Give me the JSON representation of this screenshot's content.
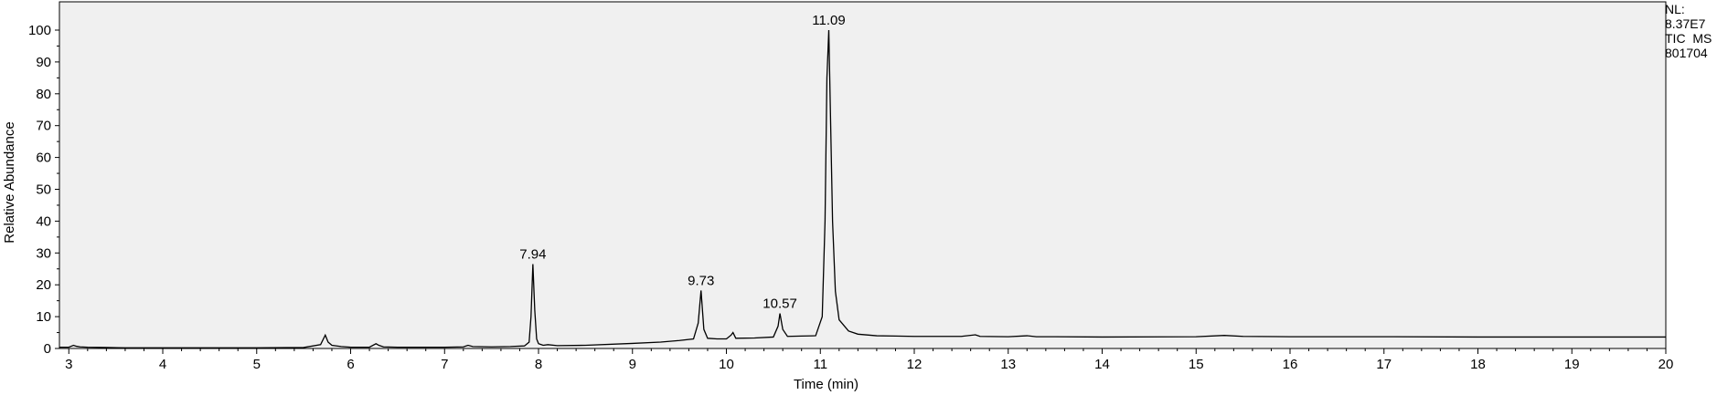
{
  "chart_data": {
    "type": "line",
    "title": "",
    "xlabel": "Time (min)",
    "ylabel": "Relative Abundance",
    "xlim": [
      2.9,
      20
    ],
    "ylim": [
      0,
      100
    ],
    "x_ticks": [
      3,
      4,
      5,
      6,
      7,
      8,
      9,
      10,
      11,
      12,
      13,
      14,
      15,
      16,
      17,
      18,
      19,
      20
    ],
    "y_ticks": [
      0,
      10,
      20,
      30,
      40,
      50,
      60,
      70,
      80,
      90,
      100
    ],
    "grid": false,
    "background": "#f0f0f0",
    "line_color": "#000000",
    "peaks": [
      {
        "label": "7.94",
        "x": 7.94,
        "y": 26.5
      },
      {
        "label": "9.73",
        "x": 9.73,
        "y": 18.2
      },
      {
        "label": "10.57",
        "x": 10.57,
        "y": 11.0
      },
      {
        "label": "11.09",
        "x": 11.09,
        "y": 100
      }
    ],
    "series": [
      {
        "x": [
          2.9,
          3.0,
          3.05,
          3.08,
          3.12,
          3.2,
          3.4,
          3.6,
          3.8,
          4.0,
          4.5,
          5.0,
          5.5,
          5.68,
          5.73,
          5.76,
          5.8,
          5.9,
          6.0,
          6.2,
          6.27,
          6.3,
          6.35,
          6.5,
          7.0,
          7.2,
          7.25,
          7.3,
          7.5,
          7.7,
          7.85,
          7.9,
          7.92,
          7.94,
          7.96,
          7.98,
          8.0,
          8.05,
          8.1,
          8.2,
          8.5,
          9.0,
          9.3,
          9.5,
          9.65,
          9.7,
          9.73,
          9.76,
          9.8,
          9.9,
          10.0,
          10.05,
          10.07,
          10.1,
          10.3,
          10.5,
          10.55,
          10.57,
          10.6,
          10.65,
          10.8,
          10.95,
          11.02,
          11.05,
          11.07,
          11.09,
          11.11,
          11.13,
          11.16,
          11.2,
          11.3,
          11.4,
          11.6,
          11.8,
          12.0,
          12.5,
          12.65,
          12.7,
          13.0,
          13.2,
          13.3,
          13.5,
          14.0,
          15.0,
          15.3,
          15.5,
          16.0,
          17.0,
          18.0,
          19.0,
          20.0
        ],
        "y": [
          0.4,
          0.4,
          1.0,
          0.7,
          0.5,
          0.4,
          0.3,
          0.2,
          0.2,
          0.2,
          0.2,
          0.2,
          0.3,
          1.2,
          4.2,
          2.0,
          1.0,
          0.6,
          0.4,
          0.4,
          1.5,
          1.0,
          0.5,
          0.4,
          0.4,
          0.5,
          1.0,
          0.6,
          0.5,
          0.6,
          0.8,
          2.0,
          10.0,
          26.5,
          12.0,
          3.0,
          1.5,
          1.0,
          1.2,
          0.9,
          1.0,
          1.6,
          2.0,
          2.5,
          3.0,
          8.0,
          18.2,
          6.0,
          3.2,
          3.0,
          3.0,
          4.2,
          5.0,
          3.2,
          3.3,
          3.6,
          7.0,
          11.0,
          6.0,
          3.8,
          3.9,
          4.0,
          10.0,
          40.0,
          85.0,
          100,
          70.0,
          40.0,
          18.0,
          9.0,
          5.5,
          4.5,
          4.0,
          3.9,
          3.8,
          3.8,
          4.3,
          3.8,
          3.7,
          4.0,
          3.7,
          3.7,
          3.6,
          3.7,
          4.1,
          3.8,
          3.7,
          3.7,
          3.6,
          3.6,
          3.6
        ]
      }
    ]
  },
  "side_info": {
    "lines": [
      "NL:",
      "8.37E7",
      "TIC  MS",
      "801704"
    ]
  }
}
